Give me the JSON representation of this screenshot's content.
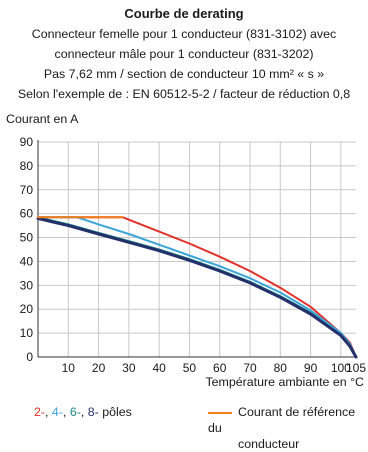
{
  "chart_data": {
    "type": "line",
    "title": "Courbe de derating",
    "subtitle_lines": [
      "Connecteur femelle pour 1 conducteur (831-3102) avec",
      "connecteur mâle pour 1 conducteur (831-3202)",
      "Pas 7,62 mm / section de conducteur 10 mm² « s »",
      "Selon l'exemple de : EN 60512-5-2 / facteur de réduction 0,8"
    ],
    "ylabel": "Courant en A",
    "xlabel": "Température ambiante en °C",
    "xlim": [
      0,
      105
    ],
    "ylim": [
      0,
      90
    ],
    "x_ticks": [
      10,
      20,
      30,
      40,
      50,
      60,
      70,
      80,
      90,
      100,
      105
    ],
    "y_ticks": [
      0,
      10,
      20,
      30,
      40,
      50,
      60,
      70,
      80,
      90
    ],
    "grid": true,
    "series": [
      {
        "key": "p2",
        "color": "#e2302a",
        "x": [
          0,
          28,
          40,
          50,
          60,
          70,
          80,
          90,
          100,
          103,
          105
        ],
        "y": [
          58.5,
          58.5,
          52.5,
          47.5,
          42,
          36,
          29,
          21,
          10,
          6,
          0
        ]
      },
      {
        "key": "p4",
        "color": "#3aa6d8",
        "x": [
          0,
          13,
          20,
          30,
          40,
          50,
          60,
          70,
          80,
          90,
          100,
          103,
          105
        ],
        "y": [
          58.5,
          58.5,
          55.5,
          51.5,
          47,
          42.5,
          38,
          33,
          27,
          19.5,
          10,
          5.5,
          0
        ]
      },
      {
        "key": "p6",
        "color": "#1f8a8a",
        "x": [
          0,
          5,
          10,
          20,
          30,
          40,
          50,
          60,
          70,
          80,
          90,
          100,
          103,
          105
        ],
        "y": [
          58.5,
          57,
          55.5,
          52,
          48.5,
          45,
          41,
          36.5,
          31.5,
          25.5,
          18.5,
          9,
          5,
          0
        ]
      },
      {
        "key": "p8",
        "color": "#23306b",
        "x": [
          0,
          5,
          10,
          20,
          30,
          40,
          50,
          60,
          70,
          80,
          90,
          100,
          103,
          105
        ],
        "y": [
          58,
          56.5,
          55,
          51.5,
          48,
          44.5,
          40.5,
          36,
          31,
          25,
          18,
          9,
          4.5,
          0
        ]
      },
      {
        "key": "ref",
        "color": "#f07f1a",
        "x": [
          0,
          28
        ],
        "y": [
          58.5,
          58.5
        ]
      }
    ],
    "legend": {
      "poles_parts": [
        {
          "text": "2-",
          "color": "#e2302a"
        },
        {
          "text": ", ",
          "color": "#1a1a1a"
        },
        {
          "text": "4-",
          "color": "#3aa6d8"
        },
        {
          "text": ", ",
          "color": "#1a1a1a"
        },
        {
          "text": "6-",
          "color": "#1f8a8a"
        },
        {
          "text": ", ",
          "color": "#1a1a1a"
        },
        {
          "text": "8-",
          "color": "#23306b"
        },
        {
          "text": " pôles",
          "color": "#1a1a1a"
        }
      ],
      "reference_line1": "Courant de référence du",
      "reference_line2": "conducteur"
    }
  }
}
